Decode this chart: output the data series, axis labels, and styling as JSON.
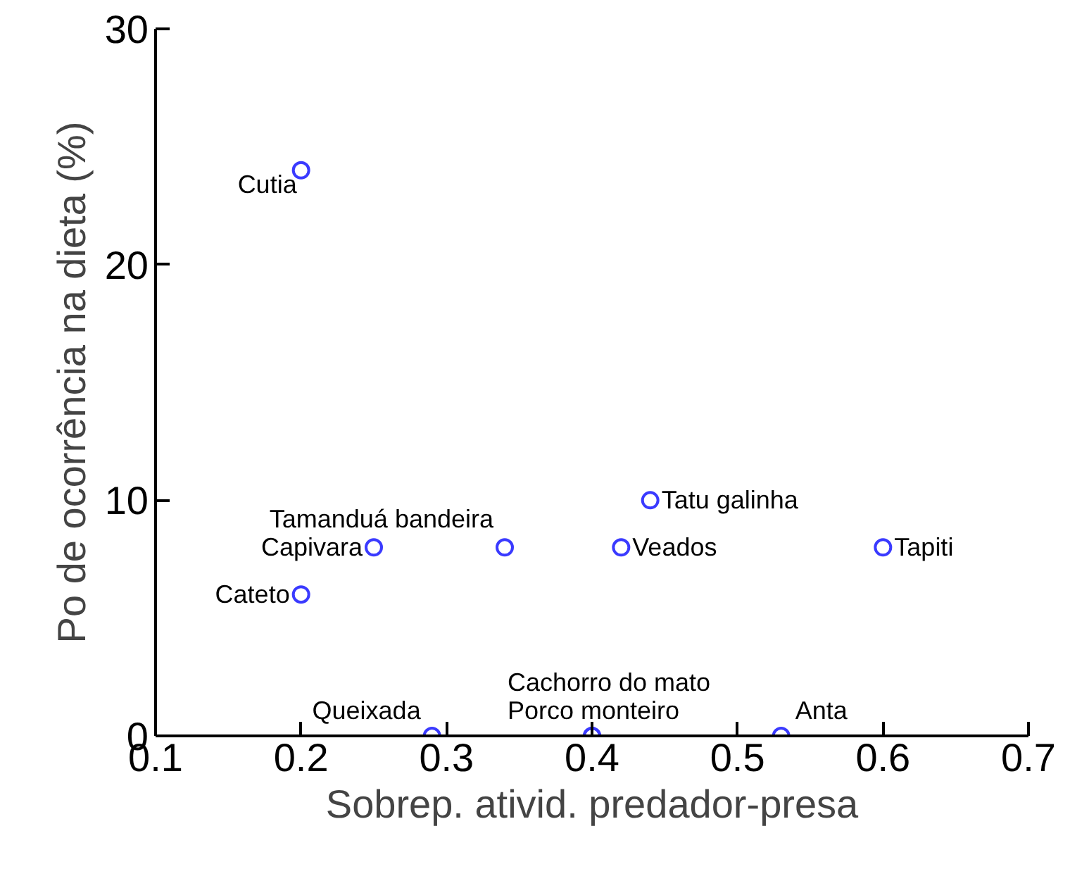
{
  "chart_data": {
    "type": "scatter",
    "xlabel": "Sobrep. ativid. predador-presa",
    "ylabel": "Po de ocorrência na dieta (%)",
    "x": [
      0.2,
      0.25,
      0.2,
      0.34,
      0.42,
      0.44,
      0.6,
      0.29,
      0.4,
      0.4,
      0.53
    ],
    "series": [
      {
        "color": "#3a3aff",
        "values": [
          24,
          8,
          6,
          8,
          8,
          10,
          8,
          0,
          0,
          0,
          0
        ]
      }
    ],
    "annotations": [
      {
        "text": "Cutia",
        "x": 0.2,
        "y": 24
      },
      {
        "text": "Capivara",
        "x": 0.25,
        "y": 8
      },
      {
        "text": "Cateto",
        "x": 0.2,
        "y": 6
      },
      {
        "text": "Tamanduá bandeira",
        "x": 0.34,
        "y": 8
      },
      {
        "text": "Veados",
        "x": 0.42,
        "y": 8
      },
      {
        "text": "Tatu galinha",
        "x": 0.44,
        "y": 10
      },
      {
        "text": "Tapiti",
        "x": 0.6,
        "y": 8
      },
      {
        "text": "Queixada",
        "x": 0.29,
        "y": 0
      },
      {
        "text": "Cachorro do mato",
        "x": 0.4,
        "y": 0
      },
      {
        "text": "Porco monteiro",
        "x": 0.4,
        "y": 0
      },
      {
        "text": "Anta",
        "x": 0.53,
        "y": 0
      }
    ],
    "marker": "circle",
    "grid": false,
    "xlim": [
      0.1,
      0.7
    ],
    "ylim": [
      0,
      30
    ],
    "xticks": [
      0.1,
      0.2,
      0.3,
      0.4,
      0.5,
      0.6,
      0.7
    ],
    "yticks": [
      0,
      10,
      20,
      30
    ]
  }
}
